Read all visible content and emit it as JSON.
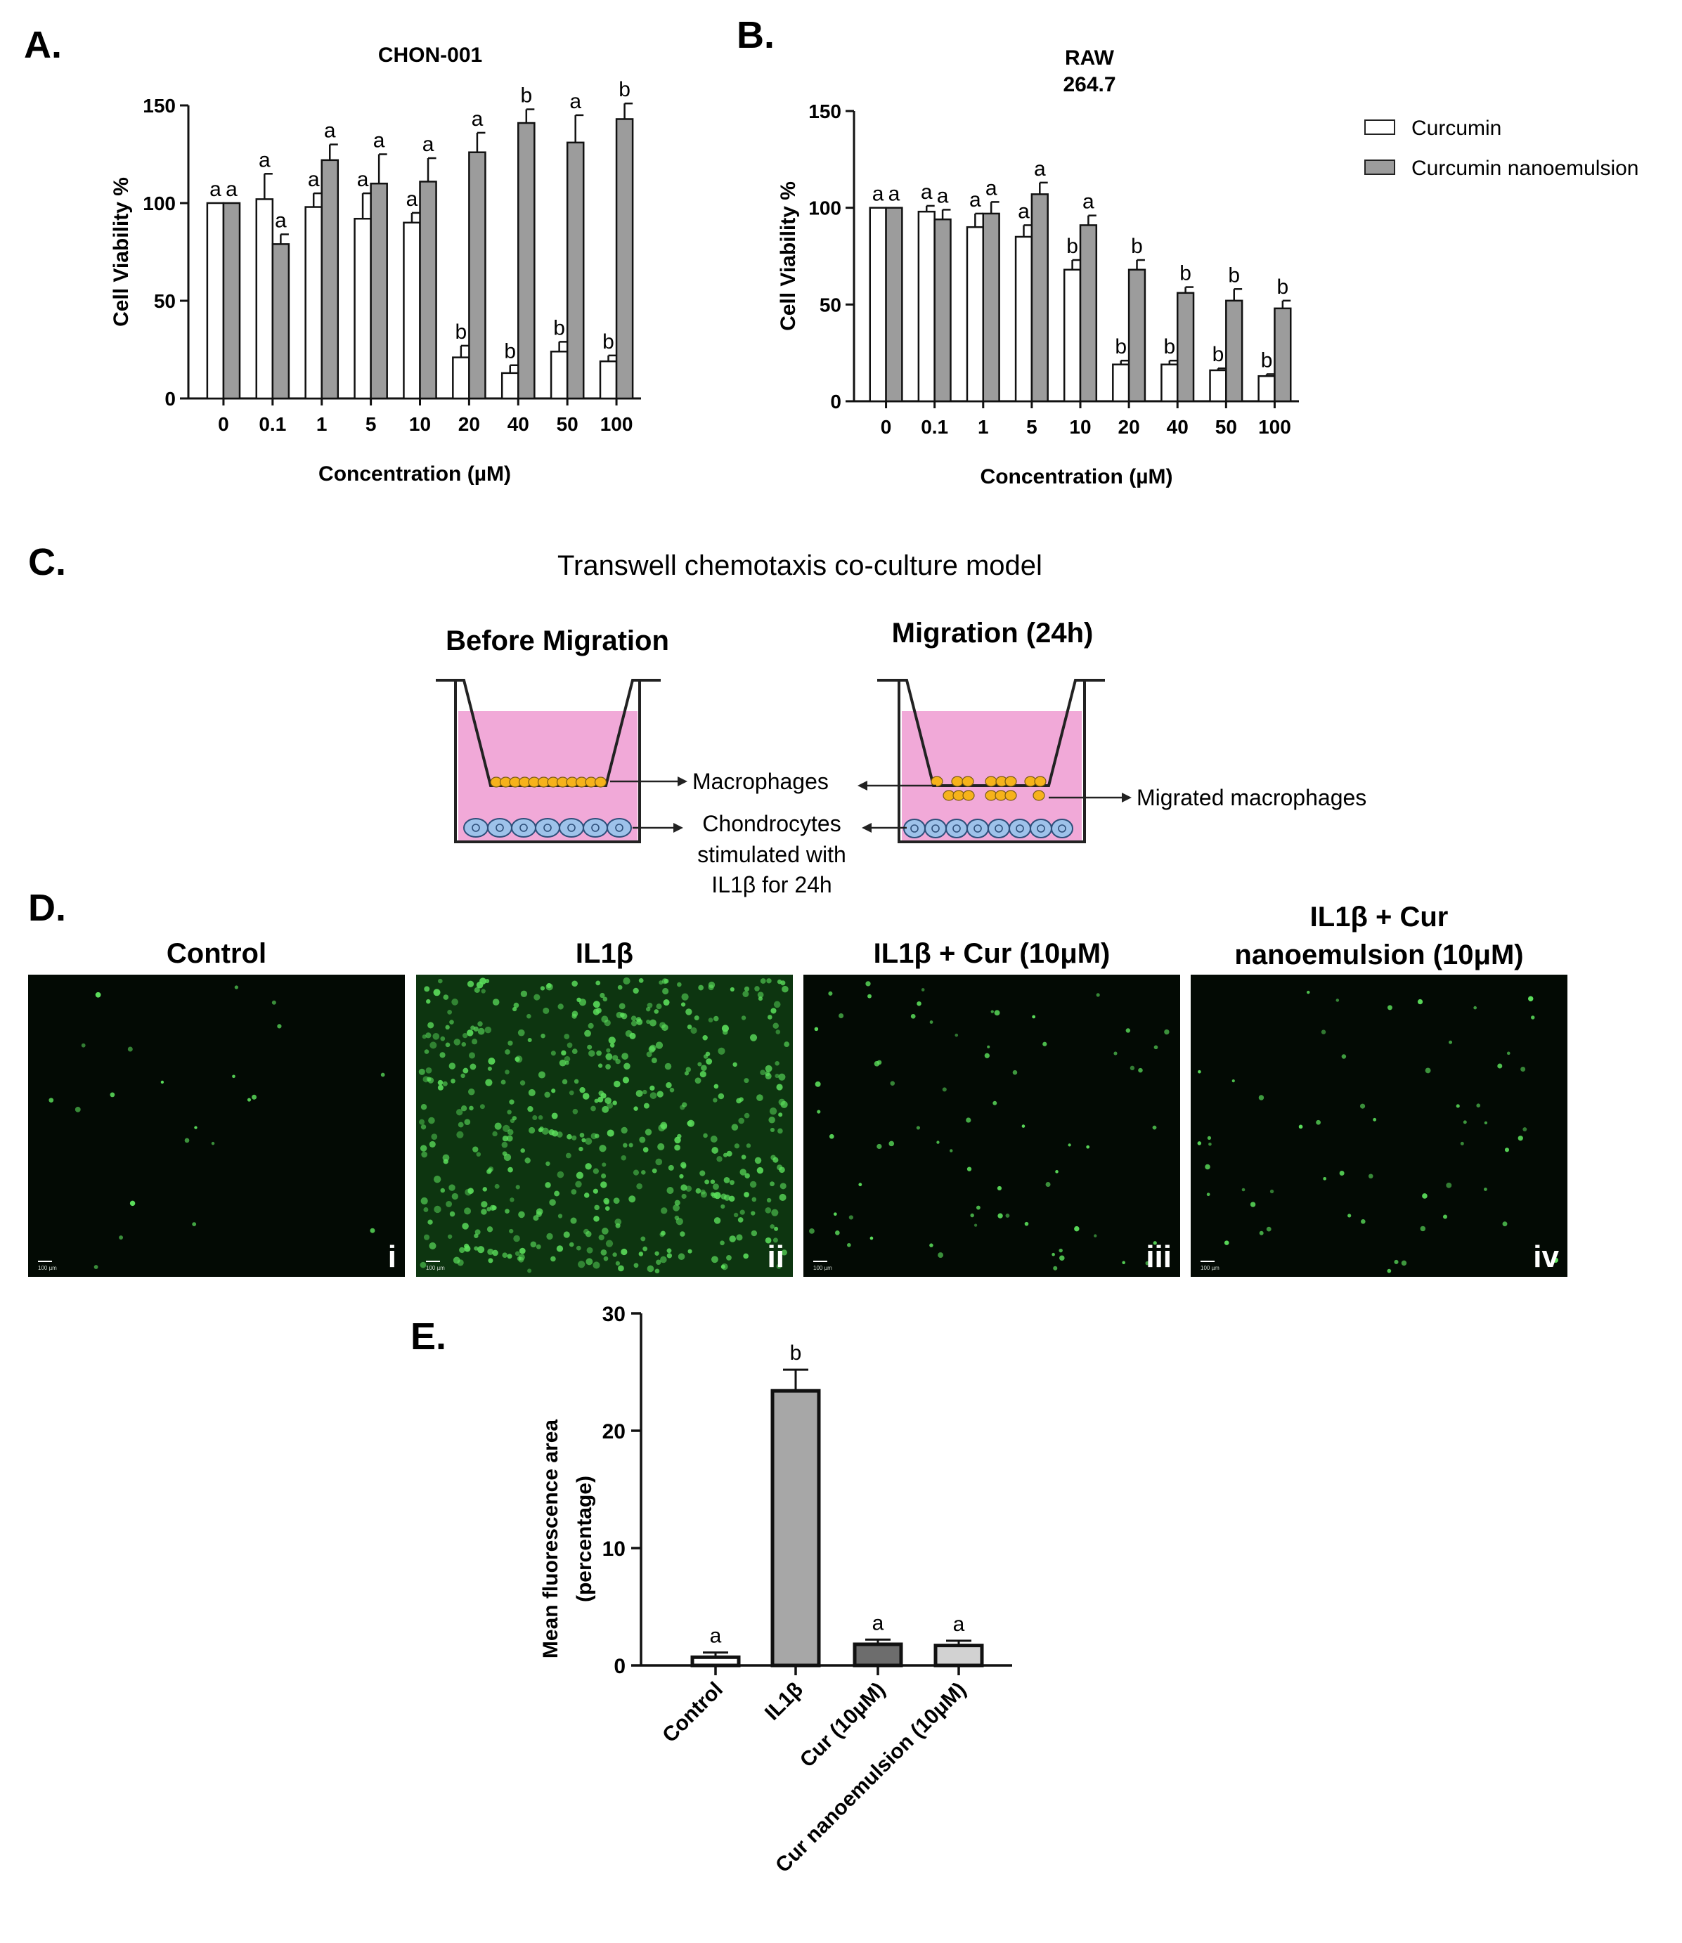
{
  "colors": {
    "curcumin": "#ffffff",
    "curcumin_nanoemulsion": "#9c9c9c",
    "il1b_bar": "#a7a7a7",
    "cur_bar": "#6d6d6d",
    "cur_nano_bar": "#d2d2d2",
    "media_pink": "#f1a9d8",
    "macrophage": "#f6b21b",
    "chondrocyte": "#9ec2ea",
    "fluorescence": "#5ce05c",
    "image_bg": "#030a04"
  },
  "panel_A": {
    "letter": "A.",
    "chart_data": {
      "type": "bar",
      "title": "CHON-001",
      "xlabel": "Concentration (µM)",
      "ylabel": "Cell Viability %",
      "ylim": [
        0,
        150
      ],
      "yticks": [
        "0",
        "50",
        "100",
        "150"
      ],
      "categories": [
        "0",
        "0.1",
        "1",
        "5",
        "10",
        "20",
        "40",
        "50",
        "100"
      ],
      "series": [
        {
          "name": "Curcumin",
          "values": [
            100,
            102,
            98,
            92,
            90,
            21,
            13,
            24,
            19
          ],
          "errors": [
            0,
            13,
            7,
            13,
            5,
            6,
            4,
            5,
            3
          ],
          "letters": [
            "a",
            "a",
            "a",
            "a",
            "a",
            "b",
            "b",
            "b",
            "b"
          ]
        },
        {
          "name": "Curcumin nanoemulsion",
          "values": [
            100,
            79,
            122,
            110,
            111,
            126,
            141,
            131,
            143
          ],
          "errors": [
            0,
            5,
            8,
            15,
            12,
            10,
            7,
            14,
            8
          ],
          "letters": [
            "a",
            "a",
            "a",
            "a",
            "a",
            "a",
            "b",
            "a",
            "b"
          ]
        }
      ]
    }
  },
  "panel_B": {
    "letter": "B.",
    "chart_data": {
      "type": "bar",
      "title_lines": [
        "RAW",
        "264.7"
      ],
      "xlabel": "Concentration (µM)",
      "ylabel": "Cell Viability %",
      "ylim": [
        0,
        150
      ],
      "yticks": [
        "0",
        "50",
        "100",
        "150"
      ],
      "categories": [
        "0",
        "0.1",
        "1",
        "5",
        "10",
        "20",
        "40",
        "50",
        "100"
      ],
      "series": [
        {
          "name": "Curcumin",
          "values": [
            100,
            98,
            90,
            85,
            68,
            19,
            19,
            16,
            13
          ],
          "errors": [
            0,
            3,
            7,
            6,
            5,
            2,
            2,
            1,
            1
          ],
          "letters": [
            "a",
            "a",
            "a",
            "a",
            "b",
            "b",
            "b",
            "b",
            "b"
          ]
        },
        {
          "name": "Curcumin nanoemulsion",
          "values": [
            100,
            94,
            97,
            107,
            91,
            68,
            56,
            52,
            48
          ],
          "errors": [
            0,
            5,
            6,
            6,
            5,
            5,
            3,
            6,
            4
          ],
          "letters": [
            "a",
            "a",
            "a",
            "a",
            "a",
            "b",
            "b",
            "b",
            "b"
          ]
        }
      ],
      "legend": {
        "placement": "top-right",
        "entries": [
          "Curcumin",
          "Curcumin nanoemulsion"
        ]
      }
    }
  },
  "panel_C": {
    "letter": "C.",
    "title": "Transwell chemotaxis co-culture model",
    "before_title": "Before Migration",
    "after_title": "Migration (24h)",
    "label_macrophages": "Macrophages",
    "label_chondro_1": "Chondrocytes",
    "label_chondro_2": "stimulated with",
    "label_chondro_3": "IL1β for 24h",
    "label_migrated": "Migrated macrophages"
  },
  "panel_D": {
    "letter": "D.",
    "images": [
      {
        "title_lines": [
          "Control"
        ],
        "roman": "i",
        "cells": 22
      },
      {
        "title_lines": [
          "IL1β"
        ],
        "roman": "ii",
        "cells": 520
      },
      {
        "title_lines": [
          "IL1β  + Cur (10μM)"
        ],
        "roman": "iii",
        "cells": 70
      },
      {
        "title_lines": [
          "IL1β + Cur",
          "nanoemulsion (10μM)"
        ],
        "roman": "iv",
        "cells": 55
      }
    ],
    "scale_text": "100 µm"
  },
  "panel_E": {
    "letter": "E.",
    "chart_data": {
      "type": "bar",
      "ylabel_lines": [
        "Mean fluorescence area",
        "(percentage)"
      ],
      "ylim": [
        0,
        30
      ],
      "yticks": [
        "0",
        "10",
        "20",
        "30"
      ],
      "categories": [
        "Control",
        "IL1β",
        "Cur (10μM)",
        "Cur nanoemulsion (10μM)"
      ],
      "values": [
        0.7,
        23.4,
        1.8,
        1.7
      ],
      "errors": [
        0.4,
        1.8,
        0.4,
        0.4
      ],
      "letters": [
        "a",
        "b",
        "a",
        "a"
      ]
    }
  }
}
